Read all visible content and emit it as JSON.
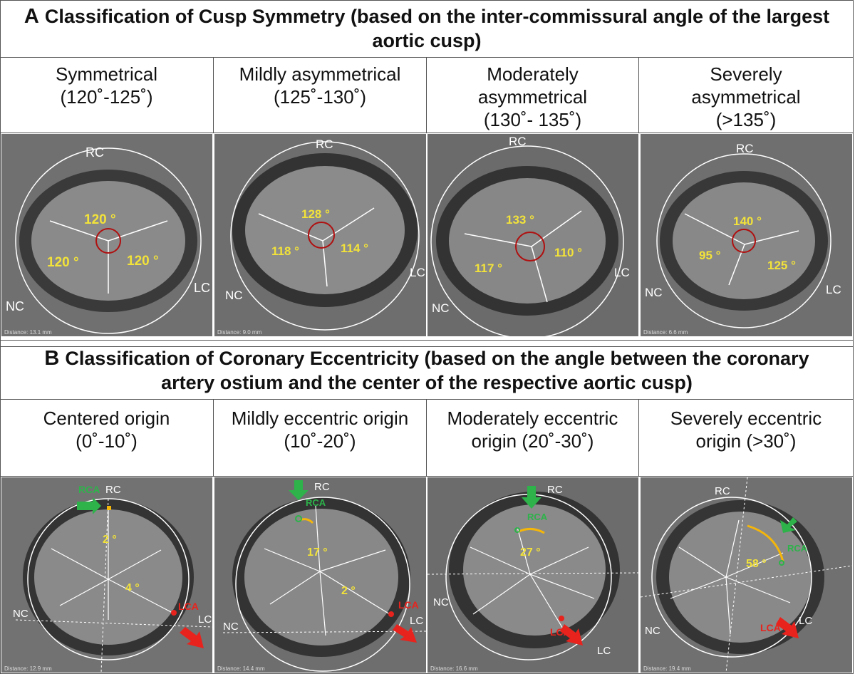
{
  "sectionA": {
    "letter": "A",
    "title": "Classification of Cusp Symmetry (based on the inter-commissural angle of the largest aortic cusp)",
    "columns": [
      {
        "line1": "Symmetrical",
        "line2": "(120˚-125˚)"
      },
      {
        "line1": "Mildly asymmetrical",
        "line2": "(125˚-130˚)"
      },
      {
        "line1": "Moderately asymmetrical",
        "line2": "(130˚- 135˚)"
      },
      {
        "line1": "Severely asymmetrical",
        "line2": "(>135˚)"
      }
    ],
    "panels": [
      {
        "angles": [
          "120 °",
          "120 °",
          "120 °"
        ],
        "labels": [
          "RC",
          "NC",
          "LC"
        ],
        "distance": "Distance: 13.1 mm"
      },
      {
        "angles": [
          "128 °",
          "118 °",
          "114 °"
        ],
        "labels": [
          "RC",
          "NC",
          "LC"
        ],
        "distance": "Distance: 9.0 mm"
      },
      {
        "angles": [
          "133 °",
          "117 °",
          "110 °"
        ],
        "labels": [
          "RC",
          "NC",
          "LC"
        ],
        "distance": ""
      },
      {
        "angles": [
          "140 °",
          "95 °",
          "125 °"
        ],
        "labels": [
          "RC",
          "NC",
          "LC"
        ],
        "distance": "Distance: 6.6 mm"
      }
    ]
  },
  "sectionB": {
    "letter": "B",
    "title": "Classification of Coronary Eccentricity (based on the angle between the coronary artery ostium and the center of the respective aortic cusp)",
    "columns": [
      {
        "line1": "Centered origin",
        "line2": "(0˚-10˚)"
      },
      {
        "line1": "Mildly eccentric origin",
        "line2": "(10˚-20˚)"
      },
      {
        "line1": "Moderately eccentric",
        "line2": "origin (20˚-30˚)"
      },
      {
        "line1": "Severely eccentric",
        "line2": "origin (>30˚)"
      }
    ],
    "panels": [
      {
        "angles": [
          "2 °",
          "4 °"
        ],
        "labels": [
          "RC",
          "NC",
          "LC"
        ],
        "rca": "RCA",
        "lca": "LCA",
        "distance": "Distance: 12.9 mm"
      },
      {
        "angles": [
          "17 °",
          "2 °"
        ],
        "labels": [
          "RC",
          "NC",
          "LC"
        ],
        "rca": "RCA",
        "lca": "LCA",
        "distance": "Distance: 14.4 mm"
      },
      {
        "angles": [
          "27 °"
        ],
        "labels": [
          "RC",
          "NC",
          "LC"
        ],
        "rca": "RCA",
        "lca": "LCA",
        "distance": "Distance: 16.6 mm"
      },
      {
        "angles": [
          "58 °"
        ],
        "labels": [
          "RC",
          "NC",
          "LC"
        ],
        "rca": "RCA",
        "lca": "LCA",
        "distance": "Distance: 19.4 mm"
      }
    ]
  },
  "colors": {
    "angle_text": "#f2e23a",
    "green_arrow": "#2db34a",
    "red_arrow": "#e8231d",
    "arc": "#f5b60a"
  }
}
